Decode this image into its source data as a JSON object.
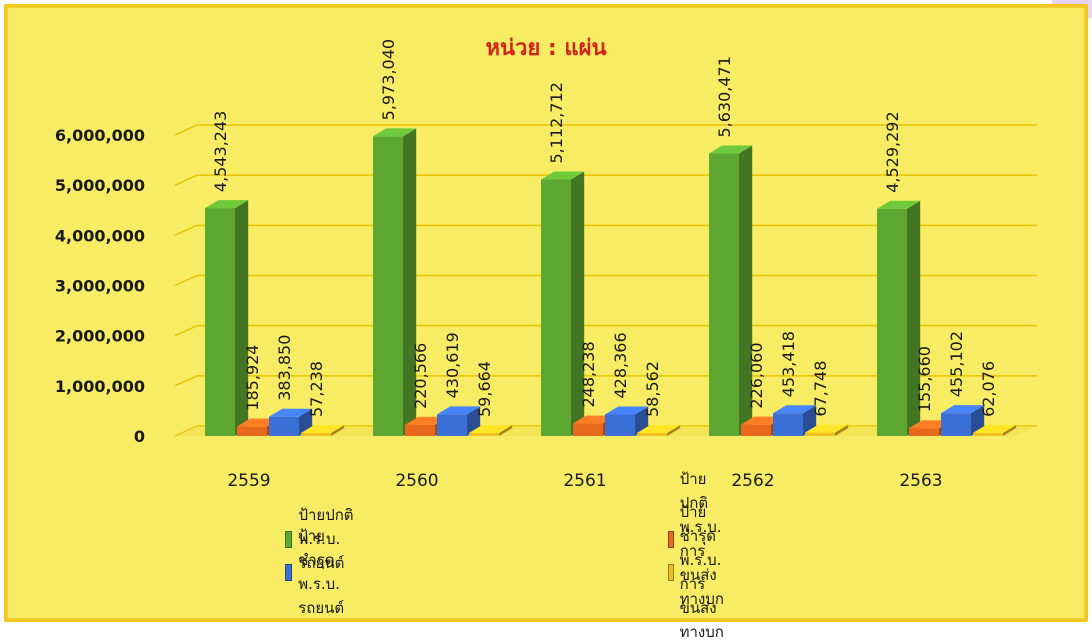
{
  "chart_data": {
    "type": "bar",
    "title": "หน่วย : แผ่น",
    "categories": [
      "2559",
      "2560",
      "2561",
      "2562",
      "2563"
    ],
    "ylim": [
      0,
      6000000
    ],
    "yticks": [
      "0",
      "1,000,000",
      "2,000,000",
      "3,000,000",
      "4,000,000",
      "5,000,000",
      "6,000,000"
    ],
    "grid": true,
    "legend_position": "bottom",
    "series": [
      {
        "name": "ป้ายปกติ พ.ร.บ. รถยนต์",
        "color": "#5ea832",
        "values": [
          4543243,
          5973040,
          5112712,
          5630471,
          4529292
        ],
        "labels": [
          "4,543,243",
          "5,973,040",
          "5,112,712",
          "5,630,471",
          "4,529,292"
        ]
      },
      {
        "name": "ป้ายปกติ   พ.ร.บ. การขนส่งทางบก",
        "color": "#e8691e",
        "values": [
          185924,
          220566,
          248238,
          226060,
          155660
        ],
        "labels": [
          "185,924",
          "220,566",
          "248,238",
          "226,060",
          "155,660"
        ]
      },
      {
        "name": "ป้ายชำรุด  พ.ร.บ. รถยนต์",
        "color": "#3b6fd6",
        "values": [
          383850,
          430619,
          428366,
          453418,
          455102
        ],
        "labels": [
          "383,850",
          "430,619",
          "428,366",
          "453,418",
          "455,102"
        ]
      },
      {
        "name": "ป้ายชำรุด  พ.ร.บ. การขนส่งทางบก",
        "color": "#f0c020",
        "values": [
          57238,
          59664,
          58562,
          67748,
          62076
        ],
        "labels": [
          "57,238",
          "59,664",
          "58,562",
          "67,748",
          "62,076"
        ]
      }
    ]
  }
}
